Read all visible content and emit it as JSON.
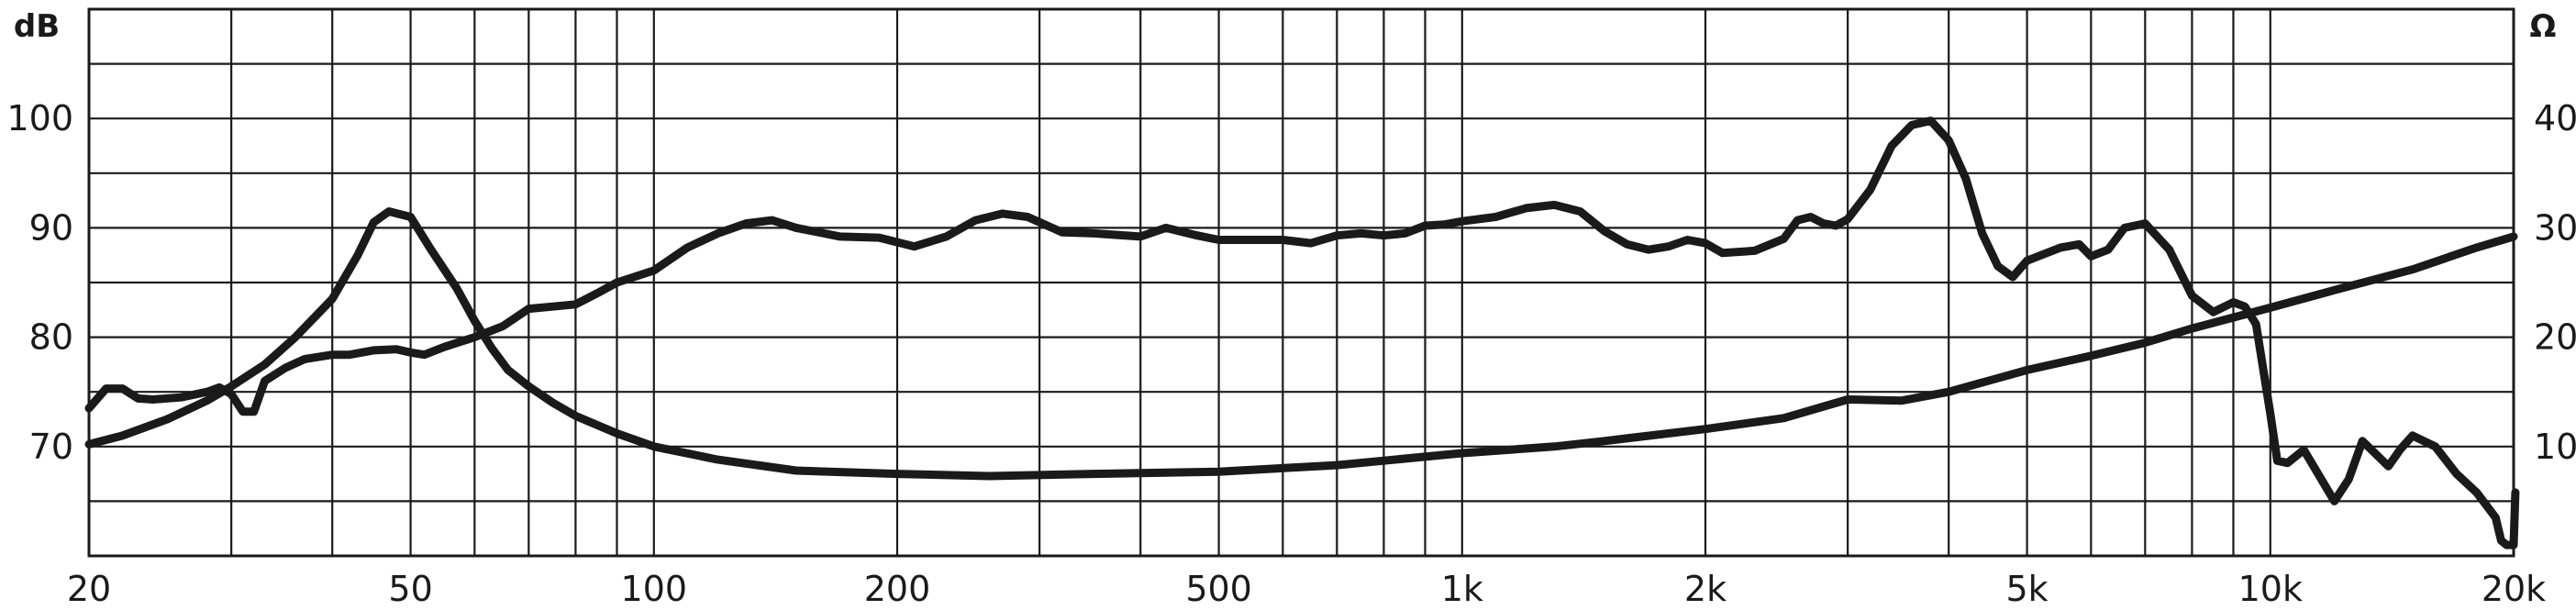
{
  "chart_data": {
    "type": "line",
    "x_scale": "log",
    "xlim": [
      20,
      20000
    ],
    "x_ticks": [
      {
        "value": 20,
        "label": "20"
      },
      {
        "value": 50,
        "label": "50"
      },
      {
        "value": 100,
        "label": "100"
      },
      {
        "value": 200,
        "label": "200"
      },
      {
        "value": 500,
        "label": "500"
      },
      {
        "value": 1000,
        "label": "1k"
      },
      {
        "value": 2000,
        "label": "2k"
      },
      {
        "value": 5000,
        "label": "5k"
      },
      {
        "value": 10000,
        "label": "10k"
      },
      {
        "value": 20000,
        "label": "20k"
      }
    ],
    "left_axis": {
      "unit_label": "dB",
      "range": [
        60,
        110
      ],
      "ticks": [
        {
          "value": 70,
          "label": "70"
        },
        {
          "value": 80,
          "label": "80"
        },
        {
          "value": 90,
          "label": "90"
        },
        {
          "value": 100,
          "label": "100"
        }
      ]
    },
    "right_axis": {
      "unit_label": "Ω",
      "range": [
        0,
        50
      ],
      "ticks": [
        {
          "value": 10,
          "label": "10"
        },
        {
          "value": 20,
          "label": "20"
        },
        {
          "value": 30,
          "label": "30"
        },
        {
          "value": 40,
          "label": "40"
        }
      ]
    },
    "grid": true,
    "line_color": "#1a1a1a",
    "series": [
      {
        "axis": "left",
        "points": [
          [
            20,
            73.5
          ],
          [
            21,
            75.3
          ],
          [
            22,
            75.3
          ],
          [
            23,
            74.4
          ],
          [
            24,
            74.3
          ],
          [
            26,
            74.5
          ],
          [
            28,
            75.0
          ],
          [
            29,
            75.4
          ],
          [
            30,
            74.8
          ],
          [
            31,
            73.2
          ],
          [
            32,
            73.2
          ],
          [
            33,
            76.0
          ],
          [
            35,
            77.2
          ],
          [
            37,
            78.0
          ],
          [
            40,
            78.4
          ],
          [
            42,
            78.4
          ],
          [
            45,
            78.8
          ],
          [
            48,
            78.9
          ],
          [
            50,
            78.6
          ],
          [
            52,
            78.4
          ],
          [
            55,
            79.1
          ],
          [
            60,
            80.0
          ],
          [
            65,
            81.0
          ],
          [
            70,
            82.6
          ],
          [
            75,
            82.8
          ],
          [
            80,
            83.0
          ],
          [
            85,
            84.0
          ],
          [
            90,
            85.0
          ],
          [
            100,
            86.1
          ],
          [
            110,
            88.2
          ],
          [
            120,
            89.5
          ],
          [
            130,
            90.4
          ],
          [
            140,
            90.7
          ],
          [
            150,
            90.0
          ],
          [
            170,
            89.2
          ],
          [
            190,
            89.1
          ],
          [
            210,
            88.3
          ],
          [
            230,
            89.2
          ],
          [
            250,
            90.7
          ],
          [
            270,
            91.3
          ],
          [
            290,
            91.0
          ],
          [
            320,
            89.6
          ],
          [
            350,
            89.5
          ],
          [
            400,
            89.2
          ],
          [
            430,
            90.0
          ],
          [
            470,
            89.3
          ],
          [
            500,
            88.9
          ],
          [
            550,
            88.9
          ],
          [
            600,
            88.9
          ],
          [
            650,
            88.6
          ],
          [
            700,
            89.3
          ],
          [
            750,
            89.5
          ],
          [
            800,
            89.3
          ],
          [
            850,
            89.5
          ],
          [
            900,
            90.2
          ],
          [
            950,
            90.3
          ],
          [
            1000,
            90.6
          ],
          [
            1100,
            91.0
          ],
          [
            1200,
            91.8
          ],
          [
            1300,
            92.1
          ],
          [
            1400,
            91.5
          ],
          [
            1500,
            89.7
          ],
          [
            1600,
            88.5
          ],
          [
            1700,
            88.0
          ],
          [
            1800,
            88.3
          ],
          [
            1900,
            88.9
          ],
          [
            2000,
            88.6
          ],
          [
            2100,
            87.7
          ],
          [
            2300,
            87.9
          ],
          [
            2500,
            89.0
          ],
          [
            2600,
            90.7
          ],
          [
            2700,
            91.0
          ],
          [
            2800,
            90.4
          ],
          [
            2900,
            90.2
          ],
          [
            3000,
            90.8
          ],
          [
            3200,
            93.5
          ],
          [
            3400,
            97.5
          ],
          [
            3600,
            99.4
          ],
          [
            3800,
            99.8
          ],
          [
            4000,
            98.0
          ],
          [
            4200,
            94.5
          ],
          [
            4400,
            89.5
          ],
          [
            4600,
            86.5
          ],
          [
            4800,
            85.5
          ],
          [
            5000,
            87.0
          ],
          [
            5500,
            88.2
          ],
          [
            5800,
            88.5
          ],
          [
            6000,
            87.4
          ],
          [
            6300,
            88.0
          ],
          [
            6600,
            90.0
          ],
          [
            7000,
            90.4
          ],
          [
            7500,
            88.0
          ],
          [
            8000,
            83.8
          ],
          [
            8500,
            82.3
          ],
          [
            9000,
            83.2
          ],
          [
            9300,
            82.8
          ],
          [
            9600,
            81.2
          ],
          [
            10000,
            73.0
          ],
          [
            10200,
            68.7
          ],
          [
            10500,
            68.5
          ],
          [
            11000,
            69.7
          ],
          [
            11500,
            67.3
          ],
          [
            12000,
            65.0
          ],
          [
            12500,
            67.0
          ],
          [
            13000,
            70.5
          ],
          [
            14000,
            68.2
          ],
          [
            14500,
            69.8
          ],
          [
            15000,
            71.0
          ],
          [
            16000,
            70.0
          ],
          [
            17000,
            67.5
          ],
          [
            18000,
            65.8
          ],
          [
            19000,
            63.5
          ],
          [
            19300,
            61.4
          ],
          [
            19600,
            61.0
          ],
          [
            20000,
            61.0
          ],
          [
            20100,
            65.8
          ]
        ]
      },
      {
        "axis": "right",
        "points": [
          [
            20,
            10.2
          ],
          [
            22,
            11.0
          ],
          [
            25,
            12.5
          ],
          [
            28,
            14.2
          ],
          [
            30,
            15.5
          ],
          [
            33,
            17.5
          ],
          [
            36,
            20.0
          ],
          [
            40,
            23.5
          ],
          [
            43,
            27.5
          ],
          [
            45,
            30.5
          ],
          [
            47,
            31.5
          ],
          [
            50,
            31.0
          ],
          [
            53,
            28.0
          ],
          [
            57,
            24.5
          ],
          [
            60,
            21.5
          ],
          [
            63,
            19.0
          ],
          [
            66,
            17.0
          ],
          [
            70,
            15.5
          ],
          [
            75,
            14.0
          ],
          [
            80,
            12.8
          ],
          [
            90,
            11.2
          ],
          [
            100,
            10.0
          ],
          [
            120,
            8.8
          ],
          [
            150,
            7.8
          ],
          [
            200,
            7.5
          ],
          [
            260,
            7.3
          ],
          [
            350,
            7.5
          ],
          [
            500,
            7.7
          ],
          [
            700,
            8.3
          ],
          [
            1000,
            9.4
          ],
          [
            1300,
            10.0
          ],
          [
            1500,
            10.5
          ],
          [
            2000,
            11.6
          ],
          [
            2500,
            12.6
          ],
          [
            3000,
            14.3
          ],
          [
            3500,
            14.2
          ],
          [
            4000,
            15.0
          ],
          [
            5000,
            17.0
          ],
          [
            6000,
            18.3
          ],
          [
            7000,
            19.5
          ],
          [
            8000,
            20.8
          ],
          [
            9000,
            21.8
          ],
          [
            10000,
            22.7
          ],
          [
            12000,
            24.3
          ],
          [
            15000,
            26.2
          ],
          [
            18000,
            28.2
          ],
          [
            20000,
            29.2
          ]
        ]
      }
    ]
  }
}
